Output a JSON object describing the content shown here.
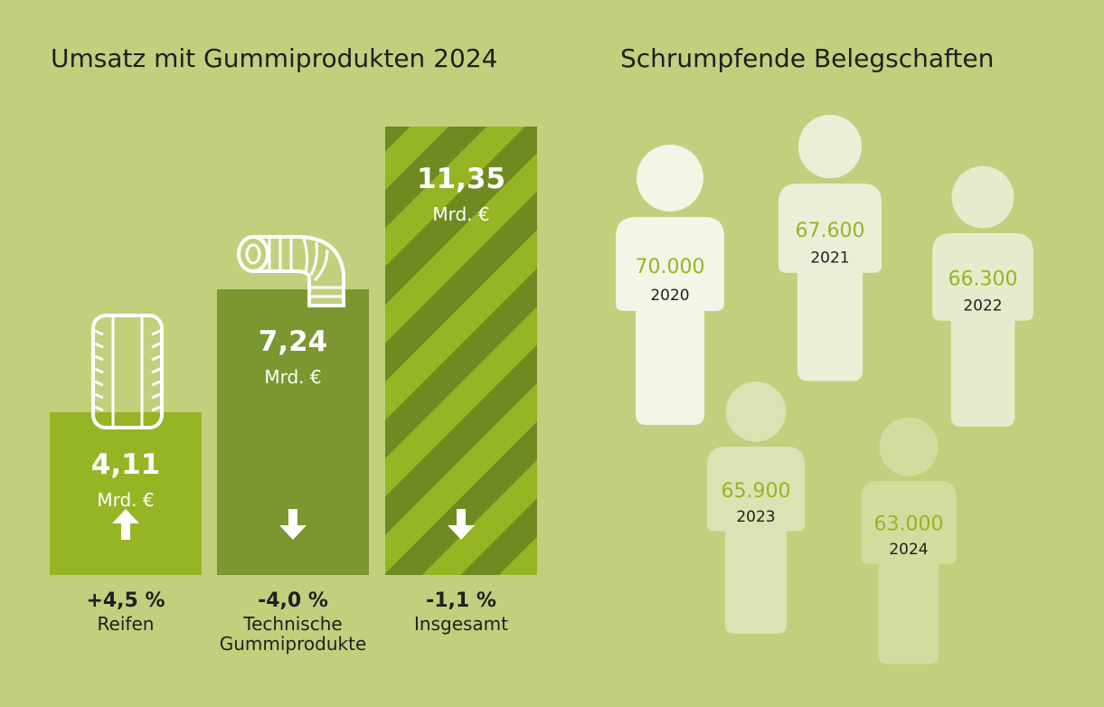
{
  "left_title": "Umsatz mit Gummiprodukten 2024",
  "right_title": "Schrumpfende Belegschaften",
  "chart_data": [
    {
      "type": "bar",
      "title": "Umsatz mit Gummiprodukten 2024",
      "categories": [
        "Reifen",
        "Technische\nGummiprodukte",
        "Insgesamt"
      ],
      "values": [
        4.11,
        7.24,
        11.35
      ],
      "value_labels": [
        "4,11",
        "7,24",
        "11,35"
      ],
      "unit": "Mrd. €",
      "changes": [
        "+4,5 %",
        "-4,0 %",
        "-1,1 %"
      ],
      "change_direction": [
        "up",
        "down",
        "down"
      ],
      "colors": [
        "#95b524",
        "#7c9630",
        "#95b524"
      ],
      "hatch_color": "#6f8a21",
      "hatched": [
        false,
        false,
        true
      ],
      "icons": [
        "tire-icon",
        "hose-icon",
        ""
      ],
      "ylim": [
        0,
        11.35
      ]
    },
    {
      "type": "pictogram",
      "title": "Schrumpfende Belegschaften",
      "categories": [
        "2020",
        "2021",
        "2022",
        "2023",
        "2024"
      ],
      "values": [
        70000,
        67600,
        66300,
        65900,
        63000
      ],
      "value_labels": [
        "70.000",
        "67.600",
        "66.300",
        "65.900",
        "63.000"
      ],
      "colors": [
        "#f3f5e6",
        "#ebefd8",
        "#e5ebcc",
        "#dbe3b4",
        "#d3dc9f"
      ],
      "value_color": "#95b524"
    }
  ]
}
